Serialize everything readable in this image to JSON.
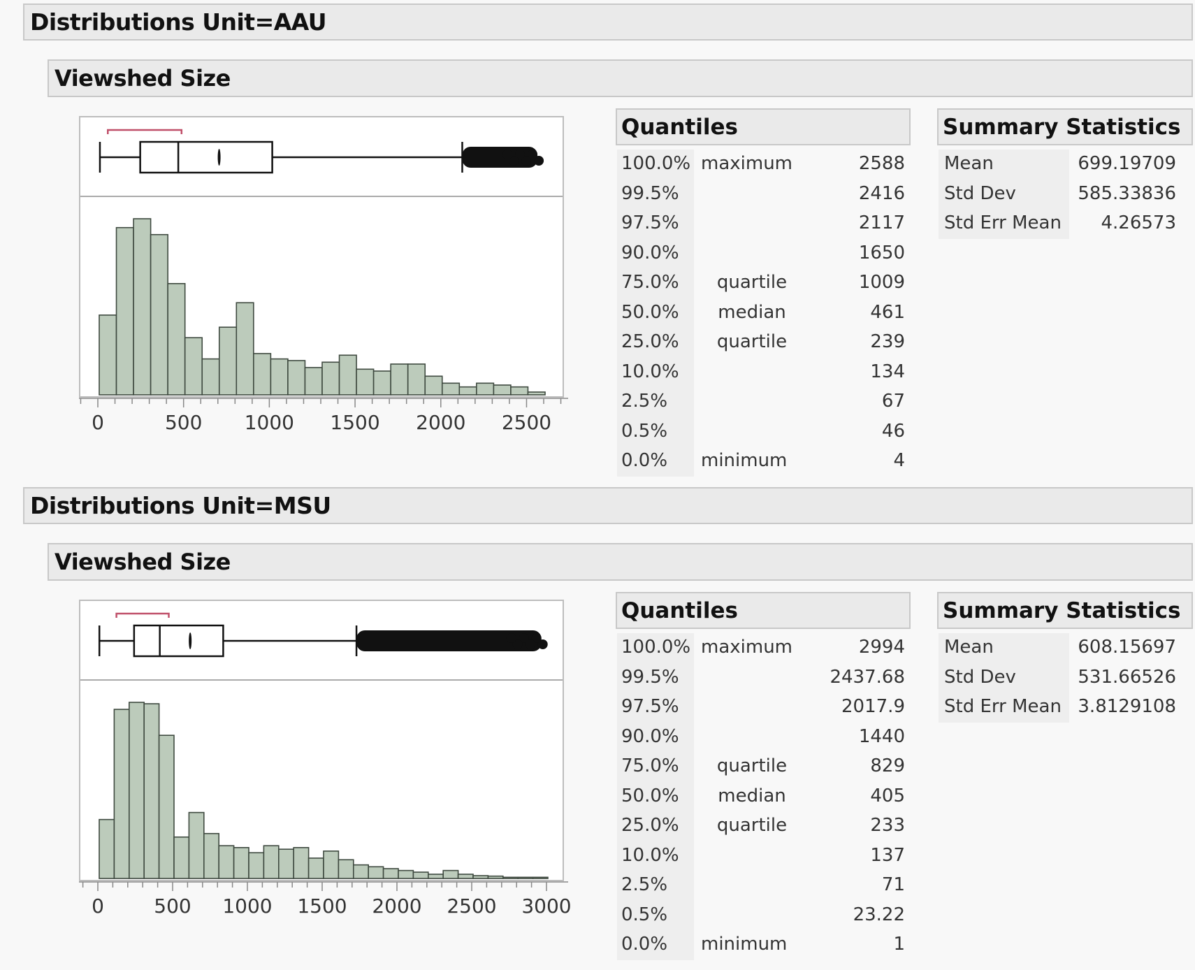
{
  "sections": [
    {
      "title": "Distributions Unit=AAU",
      "variable": "Viewshed Size",
      "quantiles_title": "Quantiles",
      "quantiles": [
        {
          "pct": "100.0%",
          "label": "maximum",
          "value": "2588"
        },
        {
          "pct": "99.5%",
          "label": "",
          "value": "2416"
        },
        {
          "pct": "97.5%",
          "label": "",
          "value": "2117"
        },
        {
          "pct": "90.0%",
          "label": "",
          "value": "1650"
        },
        {
          "pct": "75.0%",
          "label": "quartile",
          "value": "1009"
        },
        {
          "pct": "50.0%",
          "label": "median",
          "value": "461"
        },
        {
          "pct": "25.0%",
          "label": "quartile",
          "value": "239"
        },
        {
          "pct": "10.0%",
          "label": "",
          "value": "134"
        },
        {
          "pct": "2.5%",
          "label": "",
          "value": "67"
        },
        {
          "pct": "0.5%",
          "label": "",
          "value": "46"
        },
        {
          "pct": "0.0%",
          "label": "minimum",
          "value": "4"
        }
      ],
      "summary_title": "Summary Statistics",
      "summary": [
        {
          "label": "Mean",
          "value": "699.19709"
        },
        {
          "label": "Std Dev",
          "value": "585.33836"
        },
        {
          "label": "Std Err Mean",
          "value": "4.26573"
        }
      ]
    },
    {
      "title": "Distributions Unit=MSU",
      "variable": "Viewshed Size",
      "quantiles_title": "Quantiles",
      "quantiles": [
        {
          "pct": "100.0%",
          "label": "maximum",
          "value": "2994"
        },
        {
          "pct": "99.5%",
          "label": "",
          "value": "2437.68"
        },
        {
          "pct": "97.5%",
          "label": "",
          "value": "2017.9"
        },
        {
          "pct": "90.0%",
          "label": "",
          "value": "1440"
        },
        {
          "pct": "75.0%",
          "label": "quartile",
          "value": "829"
        },
        {
          "pct": "50.0%",
          "label": "median",
          "value": "405"
        },
        {
          "pct": "25.0%",
          "label": "quartile",
          "value": "233"
        },
        {
          "pct": "10.0%",
          "label": "",
          "value": "137"
        },
        {
          "pct": "2.5%",
          "label": "",
          "value": "71"
        },
        {
          "pct": "0.5%",
          "label": "",
          "value": "23.22"
        },
        {
          "pct": "0.0%",
          "label": "minimum",
          "value": "1"
        }
      ],
      "summary_title": "Summary Statistics",
      "summary": [
        {
          "label": "Mean",
          "value": "608.15697"
        },
        {
          "label": "Std Dev",
          "value": "531.66526"
        },
        {
          "label": "Std Err Mean",
          "value": "3.8129108"
        }
      ]
    }
  ],
  "colors": {
    "bar_fill": "#bccbbb",
    "bar_stroke": "#3f4a40",
    "shortest_half": "#c0506a",
    "header_bg": "#eaeaea",
    "page_bg": "#f8f8f8"
  },
  "chart_data": [
    {
      "type": "bar",
      "title": "Viewshed Size (Unit=AAU)",
      "xlabel": "Viewshed Size",
      "ylabel": "",
      "bin_width": 100,
      "bin_start": 0,
      "xlim": [
        -100,
        2700
      ],
      "xticks": [
        0,
        500,
        1000,
        1500,
        2000,
        2500
      ],
      "values": [
        342,
        717,
        755,
        687,
        477,
        245,
        154,
        290,
        395,
        177,
        154,
        147,
        117,
        140,
        170,
        110,
        102,
        132,
        132,
        80,
        50,
        34,
        50,
        42,
        34,
        12
      ],
      "value_units": "relative bar height (no count axis shown)",
      "boxplot": {
        "min": 4,
        "q1": 239,
        "median": 461,
        "q3": 1009,
        "mean": 699.2,
        "upper_whisker": 2117,
        "max": 2588,
        "shortest_half": [
          50,
          480
        ]
      },
      "grid": false,
      "legend": "none"
    },
    {
      "type": "bar",
      "title": "Viewshed Size (Unit=MSU)",
      "xlabel": "Viewshed Size",
      "ylabel": "",
      "bin_width": 100,
      "bin_start": 0,
      "xlim": [
        -100,
        3050
      ],
      "xticks": [
        0,
        500,
        1000,
        1500,
        2000,
        2500,
        3000
      ],
      "values": [
        252,
        723,
        753,
        747,
        612,
        177,
        282,
        192,
        140,
        132,
        110,
        140,
        125,
        132,
        87,
        117,
        80,
        58,
        50,
        42,
        34,
        27,
        18,
        34,
        18,
        12,
        10,
        5,
        5,
        5
      ],
      "value_units": "relative bar height (no count axis shown)",
      "boxplot": {
        "min": 1,
        "q1": 233,
        "median": 405,
        "q3": 829,
        "mean": 608.2,
        "upper_whisker": 1720,
        "max": 2994,
        "shortest_half": [
          115,
          465
        ]
      },
      "grid": false,
      "legend": "none"
    }
  ]
}
